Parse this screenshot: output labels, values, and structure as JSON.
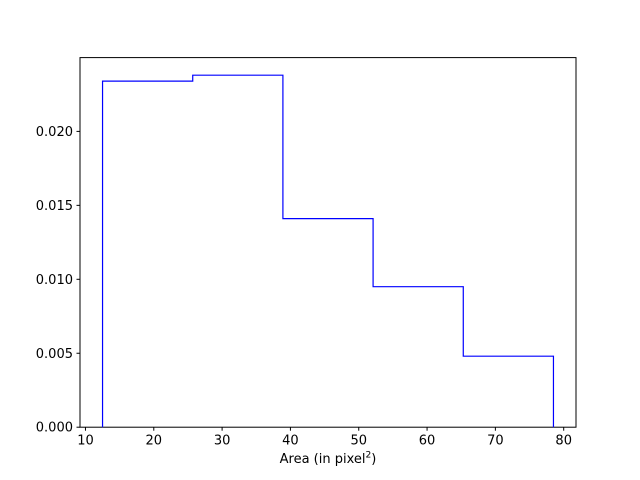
{
  "chart_data": {
    "type": "histogram",
    "histtype": "step",
    "line_color": "#0000ff",
    "axis_color": "#000000",
    "background_color": "#ffffff",
    "title": "",
    "xlabel": "Area (in pixel²)",
    "xlabel_parts": {
      "prefix": "Area (in pixel",
      "sup": "2",
      "suffix": ")"
    },
    "ylabel": "",
    "bin_edges": [
      12.5,
      25.7,
      38.9,
      52.1,
      65.3,
      78.5
    ],
    "densities": [
      0.0234,
      0.0238,
      0.0141,
      0.0095,
      0.0048
    ],
    "xlim": [
      9.2,
      81.8
    ],
    "ylim": [
      0,
      0.02499
    ],
    "xticks": {
      "values": [
        10,
        20,
        30,
        40,
        50,
        60,
        70,
        80
      ],
      "labels": [
        "10",
        "20",
        "30",
        "40",
        "50",
        "60",
        "70",
        "80"
      ]
    },
    "yticks": {
      "values": [
        0.0,
        0.005,
        0.01,
        0.015,
        0.02
      ],
      "labels": [
        "0.000",
        "0.005",
        "0.010",
        "0.015",
        "0.020"
      ]
    },
    "grid": false,
    "legend": null
  }
}
